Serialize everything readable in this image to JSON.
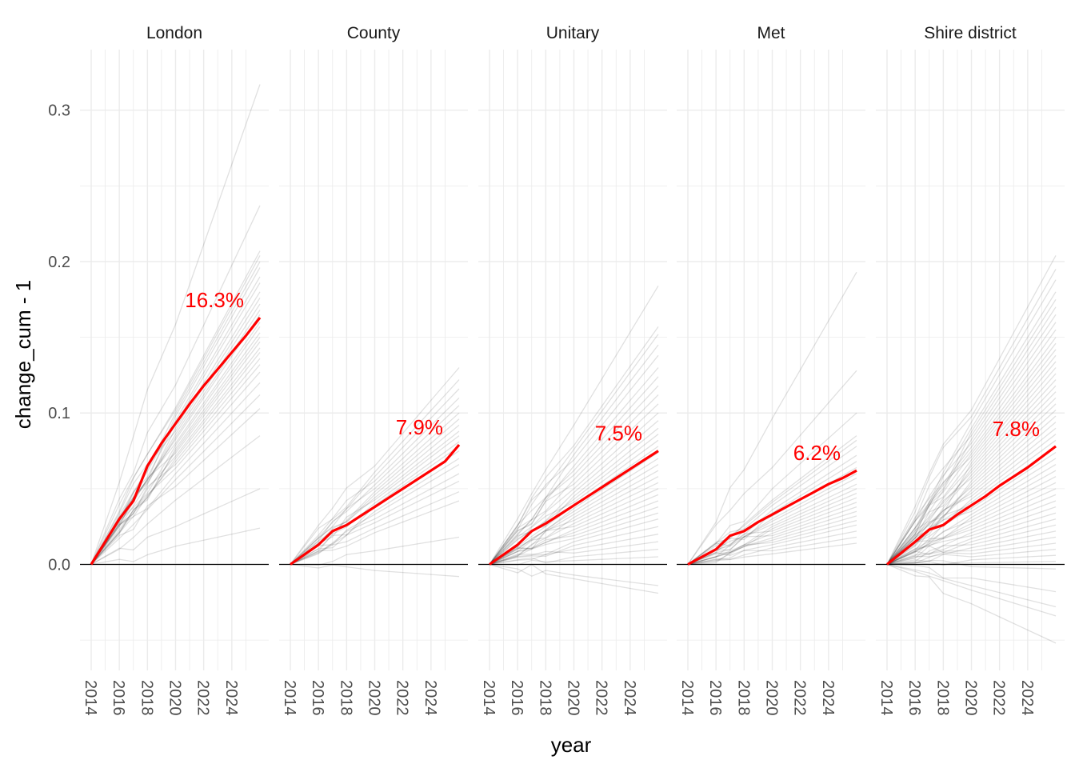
{
  "chart_data": {
    "type": "line",
    "xlabel": "year",
    "ylabel": "change_cum - 1",
    "x_ticks": [
      2014,
      2016,
      2018,
      2020,
      2022,
      2024
    ],
    "xlim": [
      2014,
      2026
    ],
    "y_ticks": [
      {
        "value": 0.0,
        "label": "0.0"
      },
      {
        "value": 0.1,
        "label": "0.1"
      },
      {
        "value": 0.2,
        "label": "0.2"
      },
      {
        "value": 0.3,
        "label": "0.3"
      }
    ],
    "ylim": [
      -0.07,
      0.34
    ],
    "grid": true,
    "reference_line": 0,
    "colors": {
      "mean_line": "#ff0000",
      "background_lines": "#000000",
      "grid": "#ebebeb",
      "zero_line": "#000000"
    },
    "panels": [
      {
        "name": "London",
        "final_label": "16.3%",
        "mean": {
          "x": [
            2014,
            2016,
            2017,
            2018,
            2019,
            2020,
            2021,
            2022,
            2023,
            2024,
            2025,
            2026
          ],
          "y": [
            0.0,
            0.03,
            0.042,
            0.065,
            0.08,
            0.093,
            0.106,
            0.118,
            0.129,
            0.14,
            0.151,
            0.163
          ]
        },
        "lines_endpoints_2026": [
          0.317,
          0.237,
          0.207,
          0.204,
          0.2,
          0.196,
          0.19,
          0.186,
          0.18,
          0.176,
          0.172,
          0.168,
          0.165,
          0.16,
          0.157,
          0.153,
          0.15,
          0.147,
          0.143,
          0.14,
          0.136,
          0.132,
          0.127,
          0.12,
          0.112,
          0.103,
          0.085,
          0.05,
          0.024
        ]
      },
      {
        "name": "County",
        "final_label": "7.9%",
        "mean": {
          "x": [
            2014,
            2016,
            2017,
            2018,
            2019,
            2020,
            2021,
            2022,
            2023,
            2024,
            2025,
            2026
          ],
          "y": [
            0.0,
            0.013,
            0.022,
            0.026,
            0.032,
            0.038,
            0.044,
            0.05,
            0.056,
            0.062,
            0.068,
            0.079
          ]
        },
        "lines_endpoints_2026": [
          0.13,
          0.122,
          0.116,
          0.11,
          0.105,
          0.1,
          0.096,
          0.092,
          0.088,
          0.085,
          0.081,
          0.078,
          0.075,
          0.07,
          0.066,
          0.06,
          0.055,
          0.048,
          0.042,
          0.018,
          -0.008
        ]
      },
      {
        "name": "Unitary",
        "final_label": "7.5%",
        "mean": {
          "x": [
            2014,
            2016,
            2017,
            2018,
            2019,
            2020,
            2021,
            2022,
            2023,
            2024,
            2025,
            2026
          ],
          "y": [
            0.0,
            0.013,
            0.022,
            0.027,
            0.033,
            0.039,
            0.045,
            0.051,
            0.057,
            0.063,
            0.069,
            0.075
          ]
        },
        "lines_endpoints_2026": [
          0.184,
          0.157,
          0.152,
          0.145,
          0.138,
          0.13,
          0.124,
          0.118,
          0.112,
          0.106,
          0.1,
          0.095,
          0.09,
          0.086,
          0.082,
          0.078,
          0.074,
          0.07,
          0.066,
          0.062,
          0.058,
          0.054,
          0.05,
          0.046,
          0.042,
          0.038,
          0.034,
          0.03,
          0.025,
          0.02,
          0.015,
          0.01,
          0.005,
          -0.014,
          -0.019
        ]
      },
      {
        "name": "Met",
        "final_label": "6.2%",
        "mean": {
          "x": [
            2014,
            2016,
            2017,
            2018,
            2019,
            2020,
            2021,
            2022,
            2023,
            2024,
            2025,
            2026
          ],
          "y": [
            0.0,
            0.01,
            0.019,
            0.022,
            0.028,
            0.033,
            0.038,
            0.043,
            0.048,
            0.053,
            0.057,
            0.062
          ]
        },
        "lines_endpoints_2026": [
          0.193,
          0.128,
          0.1,
          0.085,
          0.082,
          0.078,
          0.072,
          0.068,
          0.064,
          0.06,
          0.057,
          0.053,
          0.05,
          0.047,
          0.044,
          0.041,
          0.038,
          0.035,
          0.032,
          0.029,
          0.026,
          0.022,
          0.018,
          0.014
        ]
      },
      {
        "name": "Shire district",
        "final_label": "7.8%",
        "mean": {
          "x": [
            2014,
            2016,
            2017,
            2018,
            2019,
            2020,
            2021,
            2022,
            2023,
            2024,
            2025,
            2026
          ],
          "y": [
            0.0,
            0.015,
            0.023,
            0.026,
            0.033,
            0.039,
            0.045,
            0.052,
            0.058,
            0.064,
            0.071,
            0.078
          ]
        },
        "lines_endpoints_2026": [
          0.204,
          0.195,
          0.188,
          0.18,
          0.175,
          0.17,
          0.165,
          0.16,
          0.155,
          0.15,
          0.146,
          0.142,
          0.138,
          0.134,
          0.13,
          0.126,
          0.122,
          0.118,
          0.114,
          0.11,
          0.106,
          0.102,
          0.098,
          0.094,
          0.09,
          0.086,
          0.082,
          0.078,
          0.074,
          0.07,
          0.066,
          0.062,
          0.058,
          0.054,
          0.05,
          0.046,
          0.042,
          0.038,
          0.034,
          0.03,
          0.026,
          0.022,
          0.018,
          0.014,
          0.01,
          0.006,
          0.002,
          -0.003,
          -0.018,
          -0.028,
          -0.034,
          -0.052
        ]
      }
    ]
  }
}
